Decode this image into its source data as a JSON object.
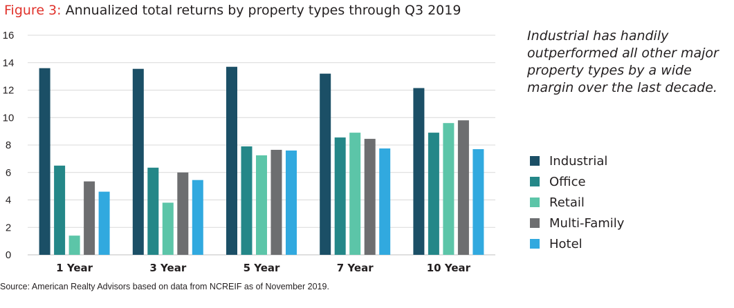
{
  "figure": {
    "label": "Figure 3:",
    "title": "Annualized total returns by property types through Q3 2019"
  },
  "annotation": "Industrial has handily outperformed all other major property types by a wide margin over the last decade.",
  "source": "Source: American Realty Advisors based on data from NCREIF as of November 2019.",
  "colors": {
    "title_label": "#e0322b",
    "gridline": "#d9d9d9"
  },
  "chart_data": {
    "type": "bar",
    "title": "Annualized total returns by property types through Q3 2019",
    "categories": [
      "1 Year",
      "3 Year",
      "5 Year",
      "7 Year",
      "10 Year"
    ],
    "ylim": [
      0,
      16
    ],
    "yticks": [
      0,
      2,
      4,
      6,
      8,
      10,
      12,
      14,
      16
    ],
    "grid": true,
    "legend_position": "right",
    "series": [
      {
        "name": "Industrial",
        "color": "#1b4f66",
        "values": [
          13.6,
          13.55,
          13.7,
          13.2,
          12.15
        ]
      },
      {
        "name": "Office",
        "color": "#248788",
        "values": [
          6.5,
          6.35,
          7.9,
          8.55,
          8.9
        ]
      },
      {
        "name": "Retail",
        "color": "#5cc5a8",
        "values": [
          1.4,
          3.8,
          7.25,
          8.9,
          9.6
        ]
      },
      {
        "name": "Multi-Family",
        "color": "#6d6e70",
        "values": [
          5.35,
          6.0,
          7.65,
          8.45,
          9.8
        ]
      },
      {
        "name": "Hotel",
        "color": "#31a9df",
        "values": [
          4.6,
          5.45,
          7.6,
          7.75,
          7.7
        ]
      }
    ]
  }
}
